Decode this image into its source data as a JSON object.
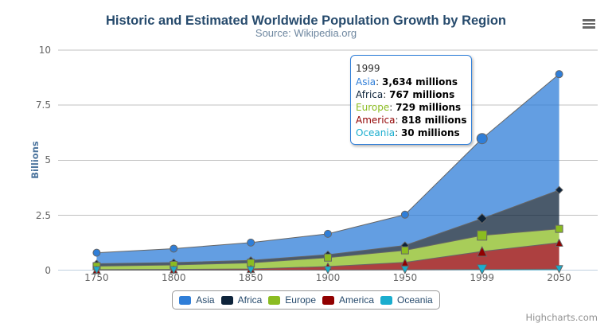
{
  "chart_data": {
    "type": "area",
    "stacking": "normal",
    "title": "Historic and Estimated Worldwide Population Growth by Region",
    "subtitle": "Source: Wikipedia.org",
    "xlabel": "",
    "ylabel": "Billions",
    "value_unit": "millions",
    "unit_divisor": 1000,
    "ylim": [
      0,
      10
    ],
    "yticks": [
      "0",
      "2.5",
      "5",
      "7.5",
      "10"
    ],
    "grid": true,
    "legend_position": "bottom-center",
    "categories": [
      "1750",
      "1800",
      "1850",
      "1900",
      "1950",
      "1999",
      "2050"
    ],
    "series": [
      {
        "name": "Asia",
        "color": "#2f7ed8",
        "marker": "circle",
        "values": [
          502,
          635,
          809,
          947,
          1402,
          3634,
          5268
        ]
      },
      {
        "name": "Africa",
        "color": "#0d233a",
        "marker": "diamond",
        "values": [
          106,
          107,
          111,
          133,
          221,
          767,
          1766
        ]
      },
      {
        "name": "Europe",
        "color": "#8bbc21",
        "marker": "square",
        "values": [
          163,
          203,
          276,
          408,
          547,
          729,
          628
        ]
      },
      {
        "name": "America",
        "color": "#910000",
        "marker": "triangle",
        "values": [
          18,
          31,
          54,
          156,
          339,
          818,
          1201
        ]
      },
      {
        "name": "Oceania",
        "color": "#1aadce",
        "marker": "triangle-down",
        "values": [
          2,
          2,
          2,
          6,
          13,
          30,
          46
        ]
      }
    ],
    "line_color": "#666666",
    "fill_opacity": 0.75
  },
  "tooltip": {
    "header": "1999",
    "category": "1999",
    "rows": [
      {
        "name": "Asia",
        "value": "3,634 millions"
      },
      {
        "name": "Africa",
        "value": "767 millions"
      },
      {
        "name": "Europe",
        "value": "729 millions"
      },
      {
        "name": "America",
        "value": "818 millions"
      },
      {
        "name": "Oceania",
        "value": "30 millions"
      }
    ]
  },
  "legend": {
    "items": [
      "Asia",
      "Africa",
      "Europe",
      "America",
      "Oceania"
    ]
  },
  "credits": "Highcharts.com",
  "colors": {
    "title": "#274b6d",
    "subtitle": "#6d869f",
    "axis_label": "#666666",
    "axis_title": "#4d759e",
    "grid_line": "#c0c0c0",
    "axis_line": "#c0d0e0",
    "tooltip_border": "#2f7ed8"
  }
}
